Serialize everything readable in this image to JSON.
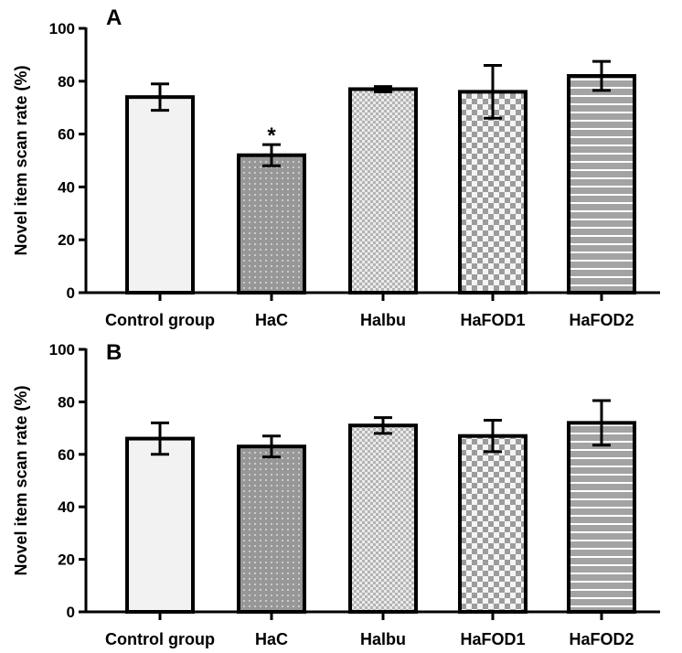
{
  "chart_data": [
    {
      "type": "bar",
      "panel": "A",
      "ylabel": "Novel item scan rate (%)",
      "ylim": [
        0,
        100
      ],
      "yticks": [
        0,
        20,
        40,
        60,
        80,
        100
      ],
      "categories": [
        "Control group",
        "HaC",
        "Halbu",
        "HaFOD1",
        "HaFOD2"
      ],
      "values": [
        74,
        52,
        77,
        76,
        82
      ],
      "errors": [
        5,
        4,
        1,
        10,
        5.5
      ],
      "significance": [
        "",
        "*",
        "",
        "",
        ""
      ]
    },
    {
      "type": "bar",
      "panel": "B",
      "ylabel": "Novel item scan rate (%)",
      "ylim": [
        0,
        100
      ],
      "yticks": [
        0,
        20,
        40,
        60,
        80,
        100
      ],
      "categories": [
        "Control group",
        "HaC",
        "Halbu",
        "HaFOD1",
        "HaFOD2"
      ],
      "values": [
        66,
        63,
        71,
        67,
        72
      ],
      "errors": [
        6,
        4,
        3,
        6,
        8.5
      ],
      "significance": [
        "",
        "",
        "",
        "",
        ""
      ]
    }
  ],
  "colors": {
    "control": "#f2f2f2",
    "hac": "#9a9a9a",
    "checker_light": "#c8c8c8",
    "checker_dark": "#a0a0a0",
    "stripe": "#a8a8a8",
    "outline": "#000000"
  }
}
